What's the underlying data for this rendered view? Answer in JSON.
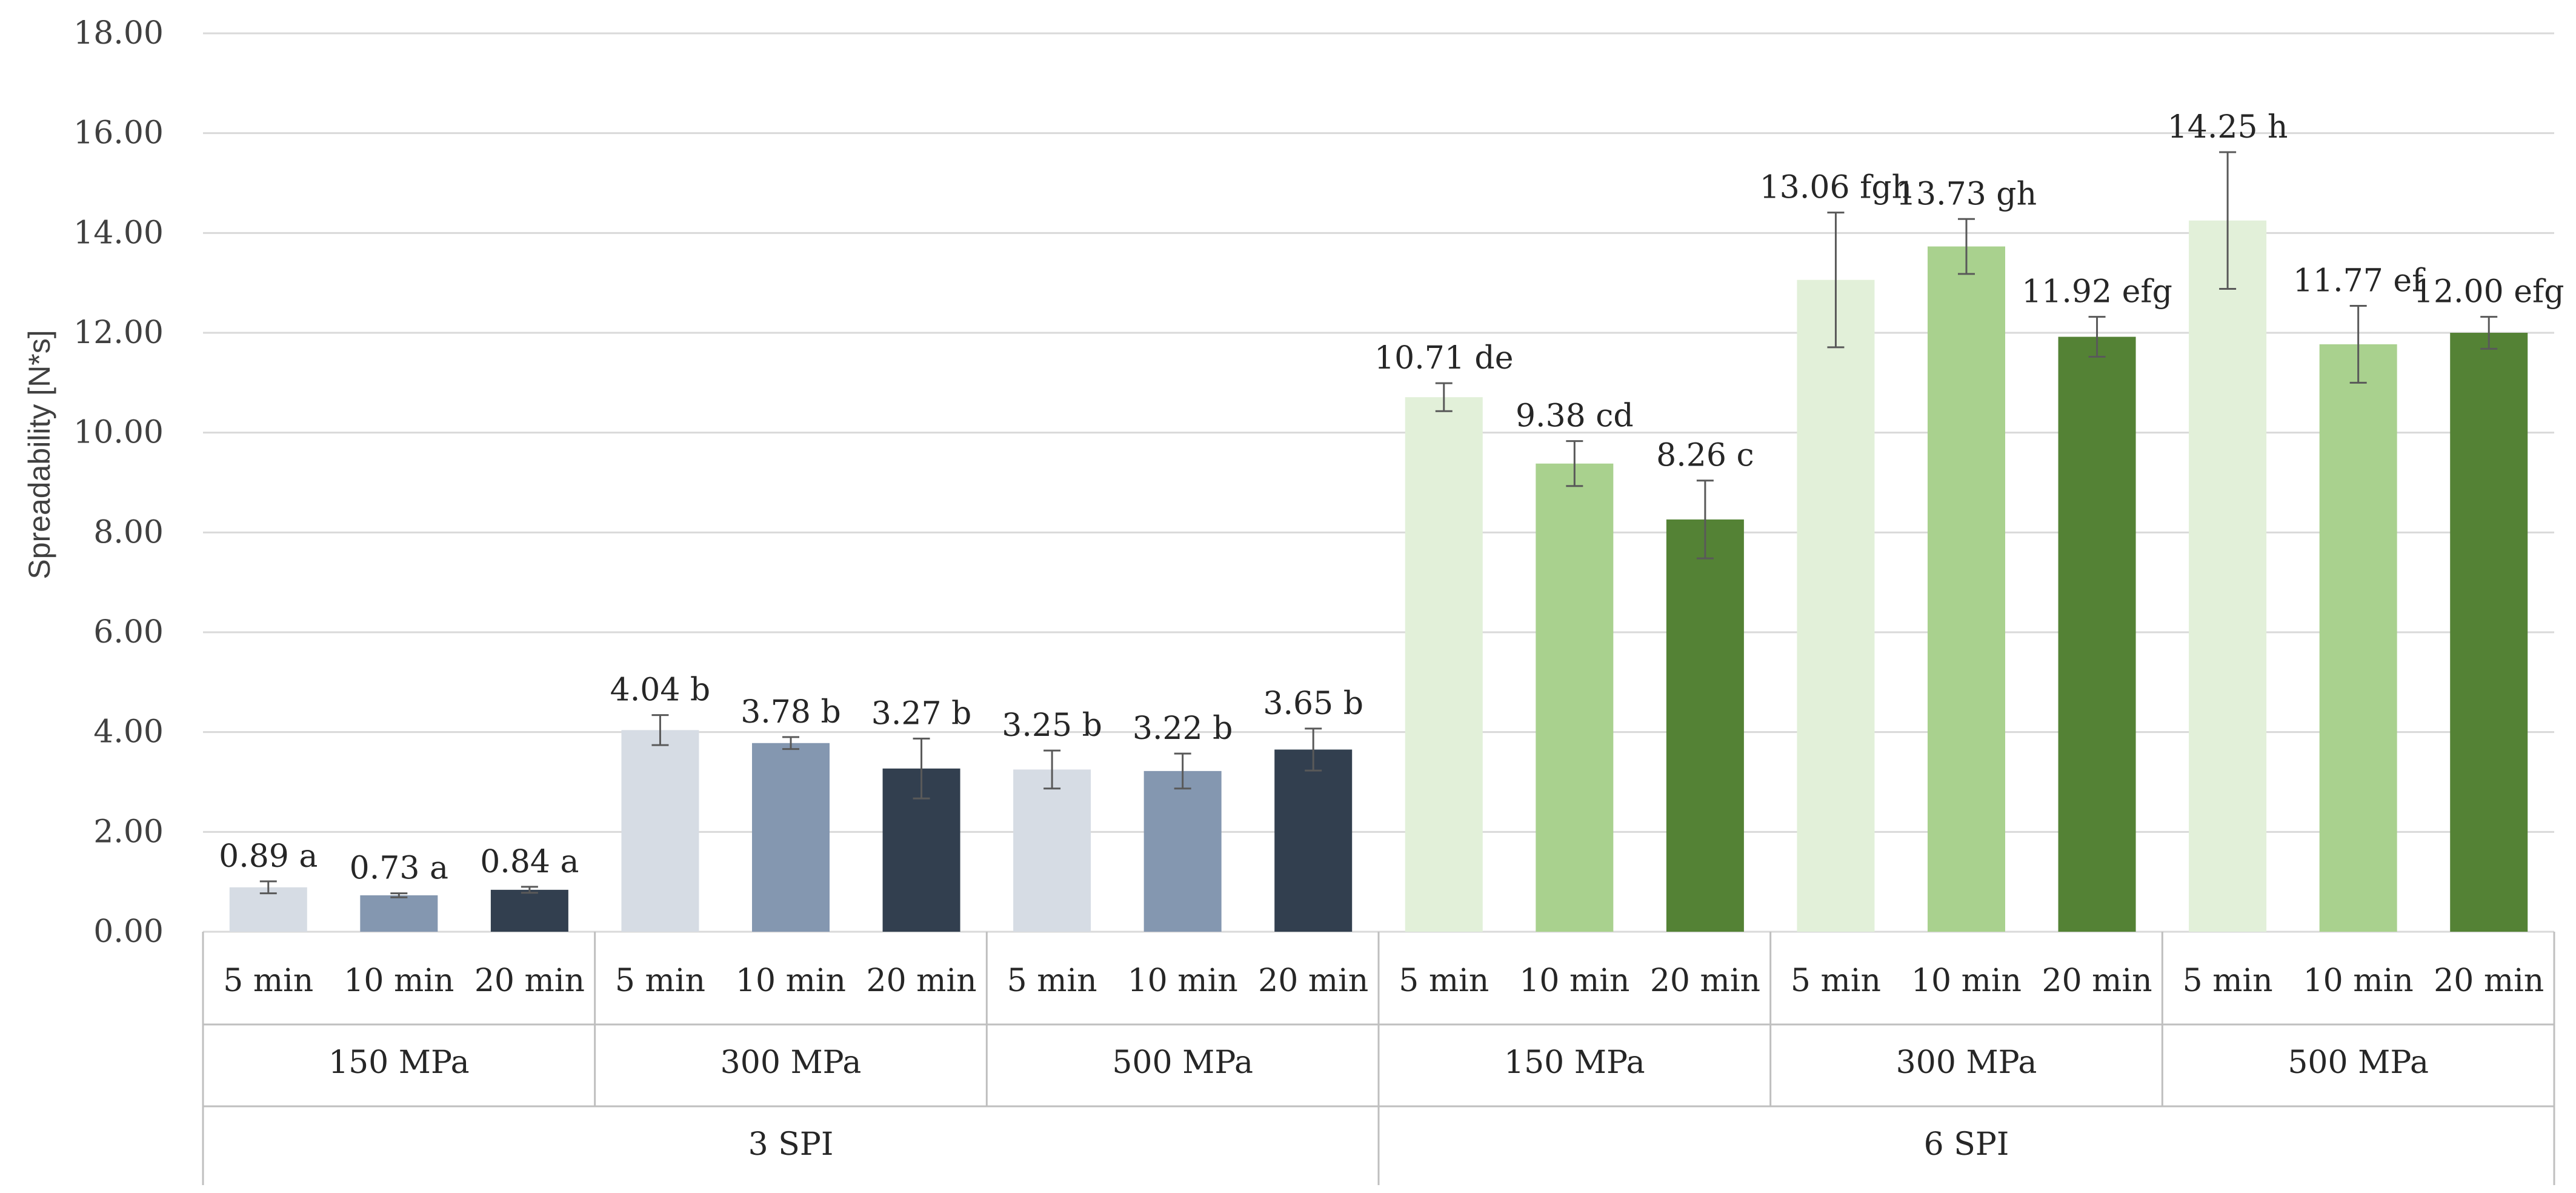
{
  "chart_data": {
    "type": "bar",
    "title": "",
    "xlabel": "",
    "ylabel": "Spreadability [N*s]",
    "ylim": [
      0,
      18
    ],
    "ytick_step": 2,
    "ytick_labels": [
      "0.00",
      "2.00",
      "4.00",
      "6.00",
      "8.00",
      "10.00",
      "12.00",
      "14.00",
      "16.00",
      "18.00"
    ],
    "grid": true,
    "levels": {
      "times": [
        "5 min",
        "10 min",
        "20 min"
      ],
      "pressures": [
        "150 MPa",
        "300 MPa",
        "500 MPa"
      ],
      "spi": [
        "3 SPI",
        "6 SPI"
      ]
    },
    "bars": [
      {
        "spi": "3 SPI",
        "pressure": "150 MPa",
        "time": "5 min",
        "value": 0.89,
        "error": 0.12,
        "label": "0.89 a",
        "color": "#d6dce4"
      },
      {
        "spi": "3 SPI",
        "pressure": "150 MPa",
        "time": "10 min",
        "value": 0.73,
        "error": 0.04,
        "label": "0.73 a",
        "color": "#8497b0"
      },
      {
        "spi": "3 SPI",
        "pressure": "150 MPa",
        "time": "20 min",
        "value": 0.84,
        "error": 0.06,
        "label": "0.84 a",
        "color": "#323f4f"
      },
      {
        "spi": "3 SPI",
        "pressure": "300 MPa",
        "time": "5 min",
        "value": 4.04,
        "error": 0.3,
        "label": "4.04 b",
        "color": "#d6dce4"
      },
      {
        "spi": "3 SPI",
        "pressure": "300 MPa",
        "time": "10 min",
        "value": 3.78,
        "error": 0.12,
        "label": "3.78 b",
        "color": "#8497b0"
      },
      {
        "spi": "3 SPI",
        "pressure": "300 MPa",
        "time": "20 min",
        "value": 3.27,
        "error": 0.6,
        "label": "3.27 b",
        "color": "#323f4f"
      },
      {
        "spi": "3 SPI",
        "pressure": "500 MPa",
        "time": "5 min",
        "value": 3.25,
        "error": 0.38,
        "label": "3.25 b",
        "color": "#d6dce4"
      },
      {
        "spi": "3 SPI",
        "pressure": "500 MPa",
        "time": "10 min",
        "value": 3.22,
        "error": 0.35,
        "label": "3.22 b",
        "color": "#8497b0"
      },
      {
        "spi": "3 SPI",
        "pressure": "500 MPa",
        "time": "20 min",
        "value": 3.65,
        "error": 0.42,
        "label": "3.65 b",
        "color": "#323f4f"
      },
      {
        "spi": "6 SPI",
        "pressure": "150 MPa",
        "time": "5 min",
        "value": 10.71,
        "error": 0.28,
        "label": "10.71 de",
        "color": "#e2f0d9"
      },
      {
        "spi": "6 SPI",
        "pressure": "150 MPa",
        "time": "10 min",
        "value": 9.38,
        "error": 0.45,
        "label": "9.38 cd",
        "color": "#a9d18e"
      },
      {
        "spi": "6 SPI",
        "pressure": "150 MPa",
        "time": "20 min",
        "value": 8.26,
        "error": 0.78,
        "label": "8.26 c",
        "color": "#548235"
      },
      {
        "spi": "6 SPI",
        "pressure": "300 MPa",
        "time": "5 min",
        "value": 13.06,
        "error": 1.35,
        "label": "13.06 fgh",
        "color": "#e2f0d9"
      },
      {
        "spi": "6 SPI",
        "pressure": "300 MPa",
        "time": "10 min",
        "value": 13.73,
        "error": 0.55,
        "label": "13.73 gh",
        "color": "#a9d18e"
      },
      {
        "spi": "6 SPI",
        "pressure": "300 MPa",
        "time": "20 min",
        "value": 11.92,
        "error": 0.4,
        "label": "11.92 efg",
        "color": "#548235"
      },
      {
        "spi": "6 SPI",
        "pressure": "500 MPa",
        "time": "5 min",
        "value": 14.25,
        "error": 1.37,
        "label": "14.25 h",
        "color": "#e2f0d9"
      },
      {
        "spi": "6 SPI",
        "pressure": "500 MPa",
        "time": "10 min",
        "value": 11.77,
        "error": 0.77,
        "label": "11.77 ef",
        "color": "#a9d18e"
      },
      {
        "spi": "6 SPI",
        "pressure": "500 MPa",
        "time": "20 min",
        "value": 12.0,
        "error": 0.32,
        "label": "12.00 efg",
        "color": "#548235"
      }
    ]
  }
}
